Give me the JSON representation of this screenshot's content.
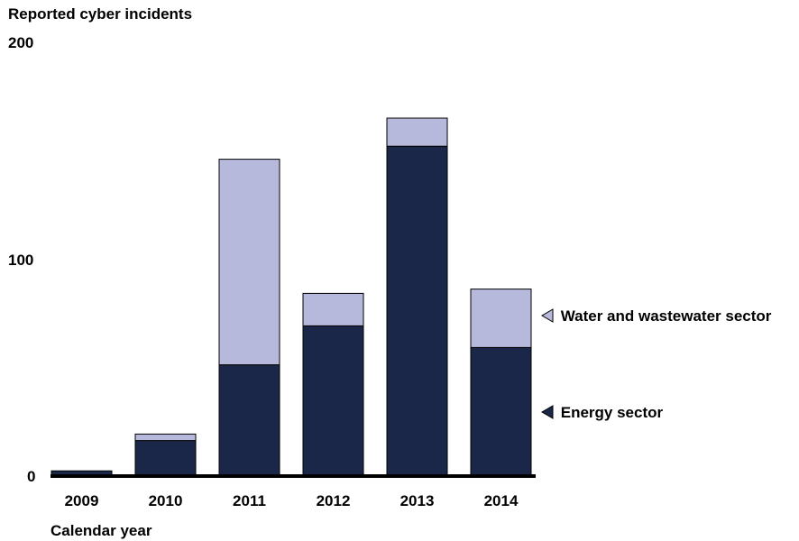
{
  "chart_data": {
    "type": "bar",
    "stacked": true,
    "ylabel": "Reported cyber incidents",
    "xlabel": "Calendar year",
    "ylim": [
      0,
      200
    ],
    "yticks": [
      "0",
      "100",
      "200"
    ],
    "categories": [
      "2009",
      "2010",
      "2011",
      "2012",
      "2013",
      "2014"
    ],
    "series": [
      {
        "name": "Energy sector",
        "color": "#1a2748",
        "values": [
          2,
          16,
          51,
          69,
          152,
          59
        ]
      },
      {
        "name": "Water and wastewater sector",
        "color": "#b6b9dc",
        "values": [
          0,
          3,
          95,
          15,
          13,
          27
        ]
      }
    ],
    "legend": "right, beside bars"
  }
}
